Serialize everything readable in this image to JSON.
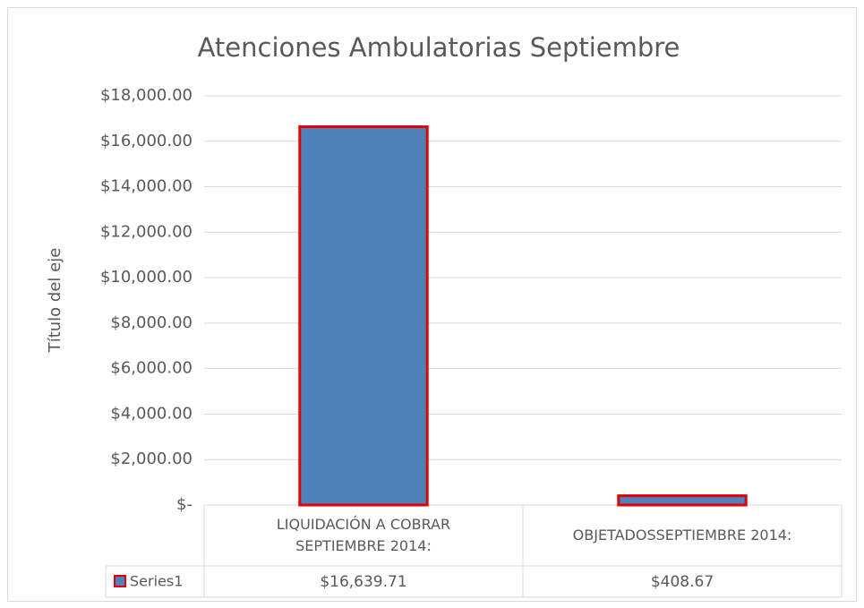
{
  "chart_data": {
    "type": "bar",
    "title": "Atenciones Ambulatorias Septiembre",
    "y_label": "Título del eje",
    "categories": [
      "LIQUIDACIÓN A COBRAR SEPTIEMBRE 2014:",
      "OBJETADOSSEPTIEMBRE 2014:"
    ],
    "series": [
      {
        "name": "Series1",
        "color": "#4f81bd",
        "edge_color": "#e00000",
        "values": [
          16639.71,
          408.67
        ],
        "value_labels": [
          "$16,639.71",
          "$408.67"
        ]
      }
    ],
    "ylim": [
      0,
      18000
    ],
    "yticks": [
      {
        "value": 0,
        "label": "$-"
      },
      {
        "value": 2000,
        "label": "$2,000.00"
      },
      {
        "value": 4000,
        "label": "$4,000.00"
      },
      {
        "value": 6000,
        "label": "$6,000.00"
      },
      {
        "value": 8000,
        "label": "$8,000.00"
      },
      {
        "value": 10000,
        "label": "$10,000.00"
      },
      {
        "value": 12000,
        "label": "$12,000.00"
      },
      {
        "value": 14000,
        "label": "$14,000.00"
      },
      {
        "value": 16000,
        "label": "$16,000.00"
      },
      {
        "value": 18000,
        "label": "$18,000.00"
      }
    ],
    "grid": true
  }
}
